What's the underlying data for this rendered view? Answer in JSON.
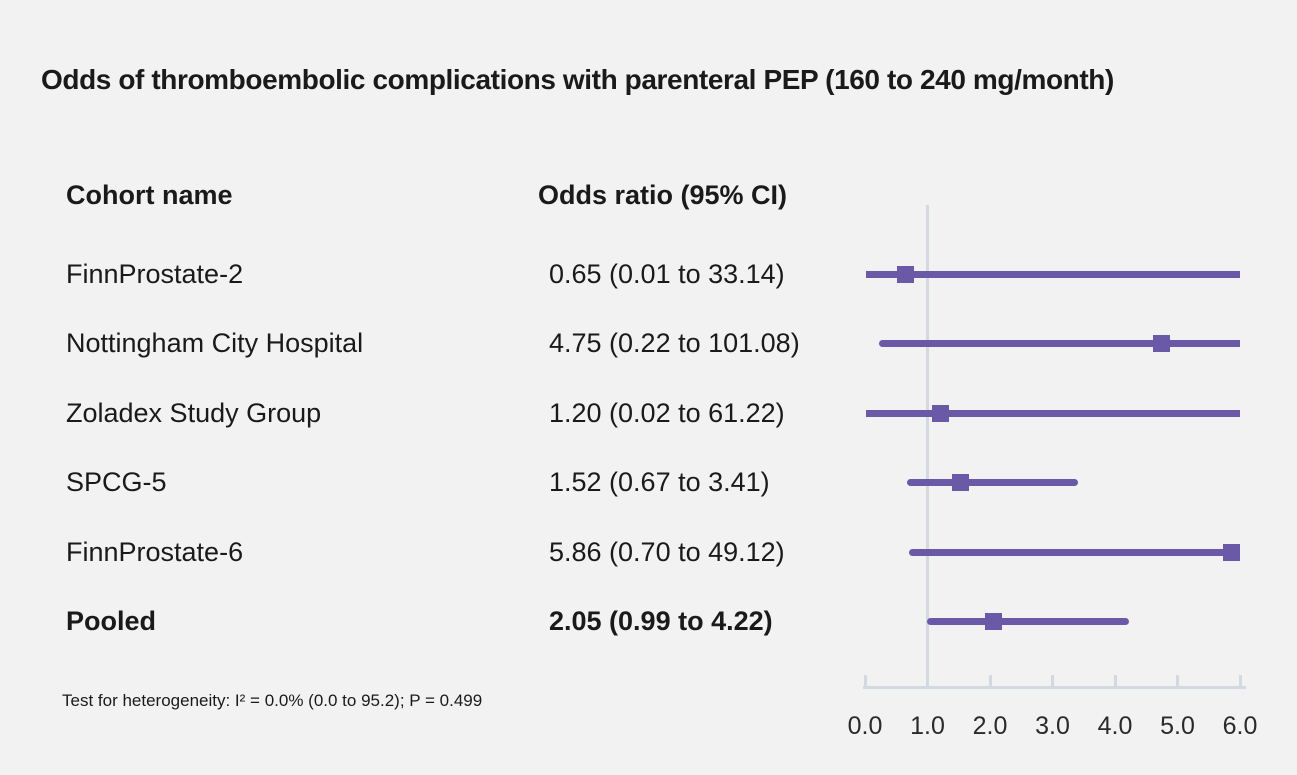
{
  "title": "Odds of thromboembolic complications with parenteral PEP (160 to 240 mg/month)",
  "table": {
    "cohort_header": "Cohort name",
    "or_header": "Odds ratio (95% CI)"
  },
  "footnote": "Test for heterogeneity: I² = 0.0% (0.0 to 95.2); P = 0.499",
  "colors": {
    "accent_purple": "#6a59a6",
    "axis_gray": "#d3d9e1",
    "text": "#1a1a1a",
    "background": "#f2f2f2"
  },
  "chart_data": {
    "type": "scatter",
    "subtype": "forest-plot",
    "title": "Odds of thromboembolic complications with parenteral PEP (160 to 240 mg/month)",
    "xlabel": "",
    "ylabel": "",
    "legend": "none",
    "grid": false,
    "x_axis": {
      "min": 0,
      "max": 6,
      "tick_values": [
        0,
        1,
        2,
        3,
        4,
        5,
        6
      ],
      "tick_labels": [
        "0.0",
        "1.0",
        "2.0",
        "3.0",
        "4.0",
        "5.0",
        "6.0"
      ],
      "reference_line": 1.0,
      "clip_max": 6.0
    },
    "rows": [
      {
        "label": "FinnProstate-2",
        "or_text": "0.65 (0.01 to 33.14)",
        "estimate": 0.65,
        "ci_low": 0.01,
        "ci_high": 33.14,
        "bold": false
      },
      {
        "label": "Nottingham City Hospital",
        "or_text": "4.75 (0.22 to 101.08)",
        "estimate": 4.75,
        "ci_low": 0.22,
        "ci_high": 101.08,
        "bold": false
      },
      {
        "label": "Zoladex Study Group",
        "or_text": "1.20 (0.02 to 61.22)",
        "estimate": 1.2,
        "ci_low": 0.02,
        "ci_high": 61.22,
        "bold": false
      },
      {
        "label": "SPCG-5",
        "or_text": "1.52 (0.67 to 3.41)",
        "estimate": 1.52,
        "ci_low": 0.67,
        "ci_high": 3.41,
        "bold": false
      },
      {
        "label": "FinnProstate-6",
        "or_text": "5.86 (0.70 to 49.12)",
        "estimate": 5.86,
        "ci_low": 0.7,
        "ci_high": 49.12,
        "bold": false
      },
      {
        "label": "Pooled",
        "or_text": "2.05 (0.99 to 4.22)",
        "estimate": 2.05,
        "ci_low": 0.99,
        "ci_high": 4.22,
        "bold": true
      }
    ]
  }
}
